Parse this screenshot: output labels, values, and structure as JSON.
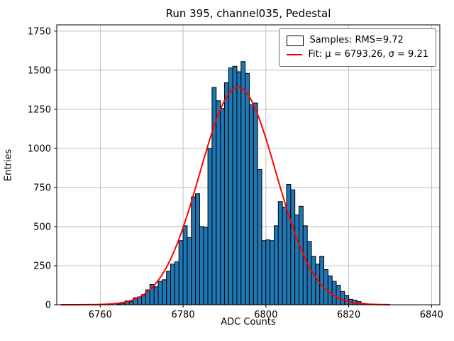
{
  "chart_data": {
    "type": "bar",
    "subtype": "histogram-with-gaussian-fit",
    "title": "Run 395, channel035, Pedestal",
    "xlabel": "ADC Counts",
    "ylabel": "Entries",
    "xlim": [
      6749.5,
      6842
    ],
    "ylim": [
      0,
      1790
    ],
    "xticks": [
      6760,
      6780,
      6800,
      6820,
      6840
    ],
    "yticks": [
      0,
      250,
      500,
      750,
      1000,
      1250,
      1500,
      1750
    ],
    "grid": true,
    "bin_start": 6764,
    "bin_width": 1,
    "values": [
      5,
      10,
      25,
      20,
      45,
      50,
      65,
      95,
      130,
      115,
      150,
      160,
      215,
      260,
      275,
      410,
      505,
      430,
      690,
      710,
      500,
      495,
      1000,
      1390,
      1305,
      1255,
      1420,
      1515,
      1525,
      1490,
      1555,
      1480,
      1280,
      1290,
      865,
      410,
      415,
      410,
      505,
      660,
      625,
      770,
      735,
      575,
      630,
      505,
      405,
      310,
      260,
      310,
      225,
      185,
      150,
      125,
      85,
      60,
      35,
      30,
      20,
      10
    ],
    "fit": {
      "type": "gaussian",
      "mu": 6793.26,
      "sigma": 9.21,
      "amplitude": 1390,
      "x_start": 6750.5,
      "x_end": 6830
    },
    "legend": {
      "position": "upper right",
      "entries": [
        {
          "label": "Samples: RMS=9.72",
          "swatch": "patch",
          "color": "#1f77b4"
        },
        {
          "label": "Fit: μ = 6793.26, σ = 9.21",
          "swatch": "line",
          "color": "#ff0000"
        }
      ]
    },
    "colors": {
      "bar_fill": "#1f77b4",
      "bar_edge": "#000000",
      "fit_line": "#ff0000",
      "grid": "#b0b0b0",
      "axes_edge": "#000000"
    }
  }
}
